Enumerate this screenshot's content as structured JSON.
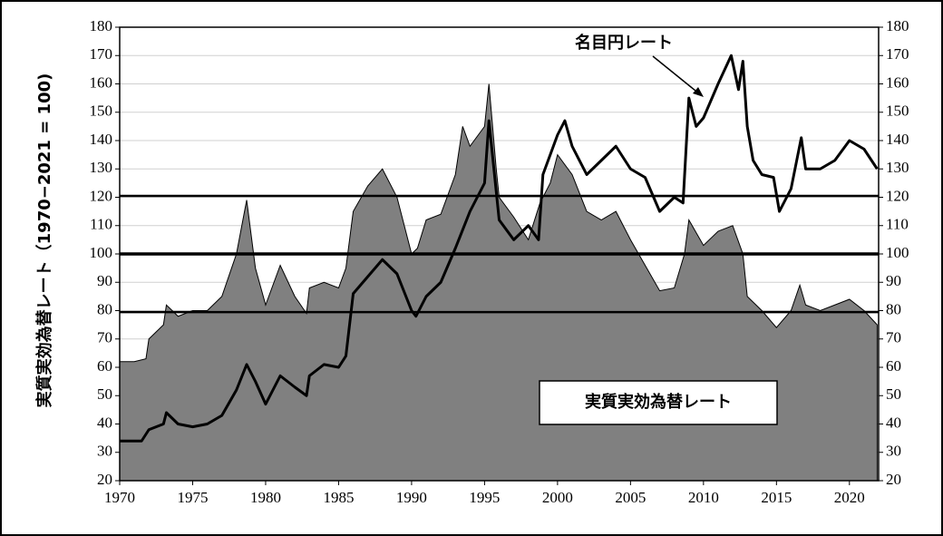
{
  "chart_data": {
    "type": "combo",
    "y_label": "実質実効為替レート（1970−2021 = 100)",
    "xlim": [
      1970,
      2022
    ],
    "xticks": [
      1970,
      1975,
      1980,
      1985,
      1990,
      1995,
      2000,
      2005,
      2010,
      2015,
      2020
    ],
    "ylim": [
      20,
      180
    ],
    "yticks": [
      20,
      30,
      40,
      50,
      60,
      70,
      80,
      90,
      100,
      110,
      120,
      130,
      140,
      150,
      160,
      170,
      180
    ],
    "y2lim": [
      20,
      180
    ],
    "y2ticks": [
      20,
      30,
      40,
      50,
      60,
      70,
      80,
      90,
      100,
      110,
      120,
      130,
      140,
      150,
      160,
      170,
      180
    ],
    "grid": true,
    "reference_lines": [
      120.5,
      100,
      79.5
    ],
    "series": [
      {
        "name": "実質実効為替レート",
        "type": "area",
        "color": "#808080",
        "x": [
          1970,
          1971,
          1971.8,
          1972,
          1973,
          1973.2,
          1974,
          1975,
          1976,
          1977,
          1978,
          1978.7,
          1979.3,
          1980,
          1981,
          1982,
          1982.8,
          1983,
          1984,
          1985,
          1985.5,
          1986,
          1987,
          1988,
          1989,
          1990,
          1990.4,
          1991,
          1992,
          1993,
          1993.5,
          1994,
          1995,
          1995.3,
          1995.8,
          1996,
          1997,
          1998,
          1998.8,
          1999.5,
          2000,
          2001,
          2002,
          2003,
          2004,
          2005,
          2006,
          2007,
          2008,
          2008.7,
          2009,
          2010,
          2011,
          2012,
          2012.7,
          2013,
          2014,
          2015,
          2016,
          2016.6,
          2017,
          2018,
          2019,
          2020,
          2021,
          2021.9
        ],
        "values": [
          62,
          62,
          63,
          70,
          75,
          82,
          78,
          80,
          80,
          85,
          100,
          119,
          95,
          82,
          96,
          85,
          79,
          88,
          90,
          88,
          95,
          115,
          124,
          130,
          120,
          100,
          102,
          112,
          114,
          128,
          145,
          138,
          145,
          160,
          130,
          120,
          113,
          105,
          118,
          125,
          135,
          128,
          115,
          112,
          115,
          105,
          96,
          87,
          88,
          100,
          112,
          103,
          108,
          110,
          100,
          85,
          80,
          74,
          80,
          89,
          82,
          80,
          82,
          84,
          80,
          75
        ]
      },
      {
        "name": "名目円レート",
        "type": "line",
        "color": "#000000",
        "x": [
          1970,
          1971.5,
          1972,
          1973,
          1973.2,
          1974,
          1975,
          1976,
          1977,
          1978,
          1978.7,
          1979.3,
          1980,
          1981,
          1982,
          1982.8,
          1983,
          1984,
          1985,
          1985.5,
          1986,
          1987,
          1988,
          1989,
          1990,
          1990.3,
          1991,
          1992,
          1993,
          1994,
          1995,
          1995.3,
          1995.8,
          1996,
          1997,
          1998,
          1998.7,
          1999,
          2000,
          2000.5,
          2001,
          2002,
          2003,
          2004,
          2005,
          2006,
          2007,
          2008,
          2008.6,
          2009,
          2009.5,
          2010,
          2011,
          2011.9,
          2012.4,
          2012.7,
          2013,
          2013.4,
          2014,
          2014.8,
          2015.2,
          2016,
          2016.7,
          2017,
          2018,
          2019,
          2020,
          2021,
          2021.9
        ],
        "values": [
          34,
          34,
          38,
          40,
          44,
          40,
          39,
          40,
          43,
          52,
          61,
          55,
          47,
          57,
          53,
          50,
          57,
          61,
          60,
          64,
          86,
          92,
          98,
          93,
          80,
          78,
          85,
          90,
          102,
          115,
          125,
          147,
          122,
          112,
          105,
          110,
          105,
          128,
          142,
          147,
          138,
          128,
          133,
          138,
          130,
          127,
          115,
          120,
          118,
          155,
          145,
          148,
          160,
          170,
          158,
          168,
          145,
          133,
          128,
          127,
          115,
          123,
          141,
          130,
          130,
          133,
          140,
          137,
          130
        ]
      }
    ]
  }
}
